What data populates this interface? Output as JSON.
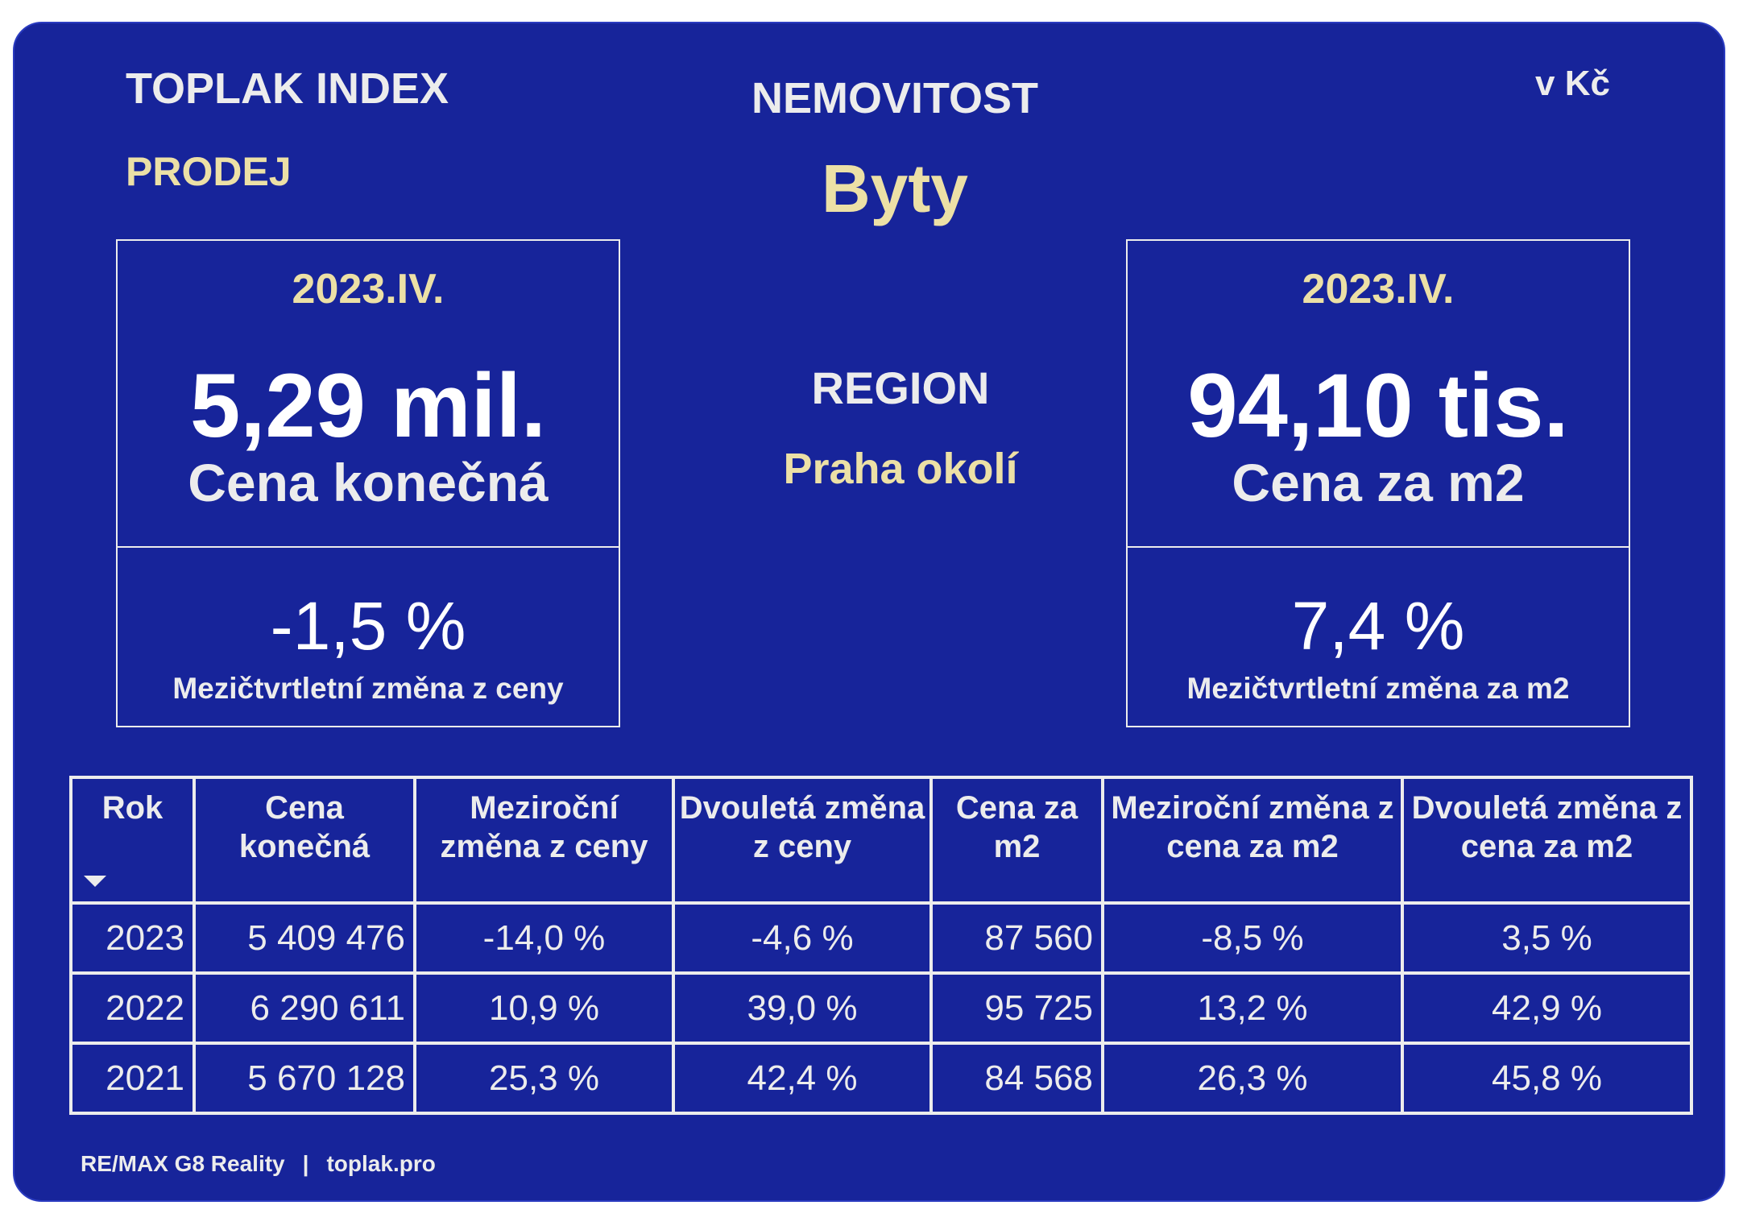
{
  "header": {
    "brand": "TOPLAK INDEX",
    "section": "PRODEJ",
    "property_label": "NEMOVITOST",
    "property_value": "Byty",
    "currency": "v Kč"
  },
  "region": {
    "label": "REGION",
    "value": "Praha okolí"
  },
  "price_box": {
    "period": "2023.IV.",
    "value": "5,29 mil.",
    "label": "Cena konečná",
    "change": "-1,5 %",
    "change_label": "Mezičtvrtletní změna z ceny"
  },
  "m2_box": {
    "period": "2023.IV.",
    "value": "94,10 tis.",
    "label": "Cena za m2",
    "change": "7,4 %",
    "change_label": "Mezičtvrtletní změna za m2"
  },
  "table": {
    "headers": [
      "Rok",
      "Cena konečná",
      "Meziroční změna z ceny",
      "Dvouletá změna z ceny",
      "Cena za m2",
      "Meziroční změna z cena za m2",
      "Dvouletá změna z cena za m2"
    ],
    "rows": [
      [
        "2023",
        "5 409 476",
        "-14,0 %",
        "-4,6 %",
        "87 560",
        "-8,5 %",
        "3,5 %"
      ],
      [
        "2022",
        "6 290 611",
        "10,9 %",
        "39,0 %",
        "95 725",
        "13,2 %",
        "42,9 %"
      ],
      [
        "2021",
        "5 670 128",
        "25,3 %",
        "42,4 %",
        "84 568",
        "26,3 %",
        "45,8 %"
      ]
    ]
  },
  "footer": {
    "company": "RE/MAX G8 Reality",
    "separator": "|",
    "website": "toplak.pro"
  }
}
